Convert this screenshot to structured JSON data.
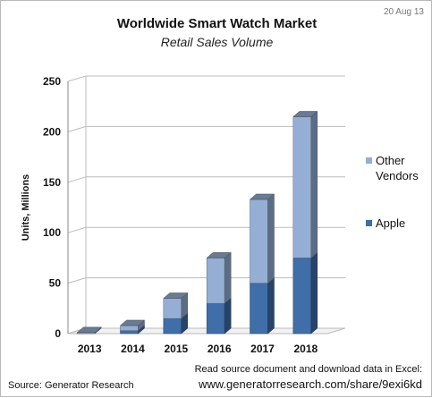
{
  "header": {
    "date": "20 Aug 13"
  },
  "footer": {
    "source": "Source: Generator Research",
    "download_text": "Read source document and download data in Excel:",
    "download_url": "www.generatorresearch.com/share/9exi6kd"
  },
  "colors": {
    "apple": "#3f6ea8",
    "other": "#95aed4",
    "grid": "#bbbbbb"
  },
  "chart_data": {
    "type": "bar",
    "stacked": true,
    "three_d": true,
    "title": "Worldwide Smart Watch Market",
    "subtitle": "Retail Sales Volume",
    "ylabel": "Units, Millions",
    "xlabel": "",
    "categories": [
      "2013",
      "2014",
      "2015",
      "2016",
      "2017",
      "2018"
    ],
    "series": [
      {
        "name": "Apple",
        "values": [
          0,
          3,
          15,
          30,
          50,
          75
        ]
      },
      {
        "name": "Other Vendors",
        "values": [
          1,
          5,
          20,
          45,
          83,
          140
        ]
      }
    ],
    "ylim": [
      0,
      250
    ],
    "yticks": [
      "0",
      "50",
      "100",
      "150",
      "200",
      "250"
    ],
    "grid": true,
    "legend_position": "right"
  }
}
